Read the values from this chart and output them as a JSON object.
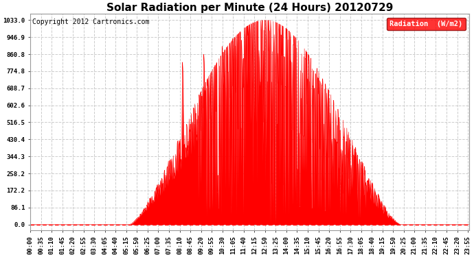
{
  "title": "Solar Radiation per Minute (24 Hours) 20120729",
  "copyright": "Copyright 2012 Cartronics.com",
  "legend_label": "Radiation  (W/m2)",
  "y_ticks": [
    0.0,
    86.1,
    172.2,
    258.2,
    344.3,
    430.4,
    516.5,
    602.6,
    688.7,
    774.8,
    860.8,
    946.9,
    1033.0
  ],
  "y_max": 1033.0,
  "fill_color": "#FF0000",
  "line_color": "#FF0000",
  "bg_color": "#FFFFFF",
  "grid_color": "#CCCCCC",
  "title_fontsize": 11,
  "copyright_fontsize": 7,
  "tick_fontsize": 6.5,
  "legend_fontsize": 7.5,
  "sunrise_min": 325,
  "sunset_min": 1215,
  "peak_min": 790
}
